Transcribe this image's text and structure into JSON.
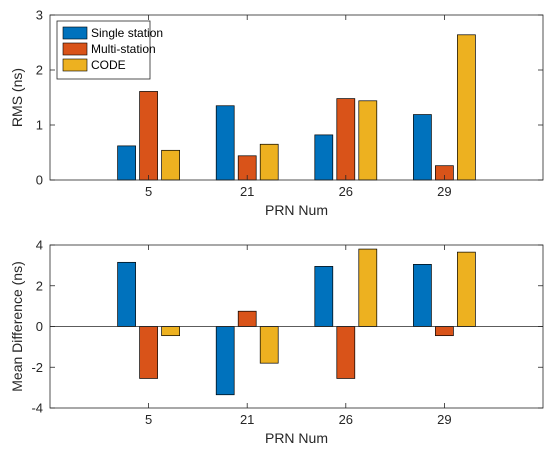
{
  "colors": {
    "single": "#0072BD",
    "multi": "#D95319",
    "code": "#EDB120",
    "axis": "#262626",
    "bar_edge": "#000000"
  },
  "chart_data": [
    {
      "type": "bar",
      "title": "",
      "xlabel": "PRN Num",
      "ylabel": "RMS (ns)",
      "categories": [
        "5",
        "21",
        "26",
        "29"
      ],
      "ylim": [
        0,
        3
      ],
      "yticks": [
        "0",
        "1",
        "2",
        "3"
      ],
      "grid": false,
      "legend_position": "top-left",
      "series": [
        {
          "name": "Single station",
          "color_key": "single",
          "values": [
            0.62,
            1.35,
            0.82,
            1.19
          ]
        },
        {
          "name": "Multi-station",
          "color_key": "multi",
          "values": [
            1.61,
            0.44,
            1.48,
            0.26
          ]
        },
        {
          "name": "CODE",
          "color_key": "code",
          "values": [
            0.54,
            0.65,
            1.44,
            2.64
          ]
        }
      ]
    },
    {
      "type": "bar",
      "title": "",
      "xlabel": "PRN Num",
      "ylabel": "Mean Difference (ns)",
      "categories": [
        "5",
        "21",
        "26",
        "29"
      ],
      "ylim": [
        -4,
        4
      ],
      "yticks": [
        "-4",
        "-2",
        "0",
        "2",
        "4"
      ],
      "grid": false,
      "series": [
        {
          "name": "Single station",
          "color_key": "single",
          "values": [
            3.15,
            -3.35,
            2.95,
            3.05
          ]
        },
        {
          "name": "Multi-station",
          "color_key": "multi",
          "values": [
            -2.55,
            0.75,
            -2.55,
            -0.45
          ]
        },
        {
          "name": "CODE",
          "color_key": "code",
          "values": [
            -0.45,
            -1.8,
            3.8,
            3.65
          ]
        }
      ]
    }
  ]
}
